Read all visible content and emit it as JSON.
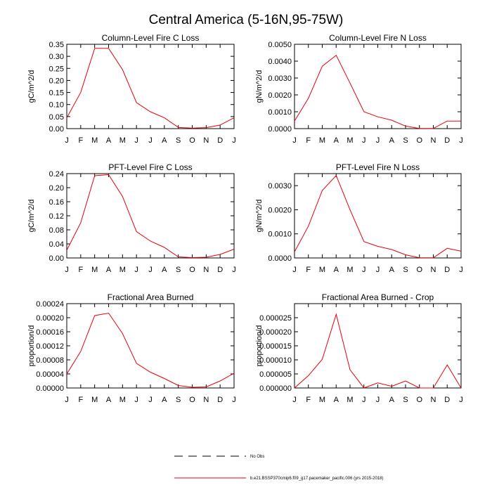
{
  "main_title": "Central America (5-16N,95-75W)",
  "legend": {
    "obs_label": "No Obs",
    "model_label": "b.e21.BSSP370cmip6.f09_g17.pacemaker_pacific.006 (yrs 2015-2018)",
    "model_color": "#e8000b",
    "obs_color": "#000000"
  },
  "chart_data": [
    {
      "type": "line",
      "title": "Column-Level Fire C Loss",
      "ylabel": "gC/m^2/d",
      "x": [
        "J",
        "F",
        "M",
        "A",
        "M",
        "J",
        "J",
        "A",
        "S",
        "O",
        "N",
        "D",
        "J"
      ],
      "ylim": [
        0,
        0.35
      ],
      "yticks": [
        "0.00",
        "0.05",
        "0.10",
        "0.15",
        "0.20",
        "0.25",
        "0.30",
        "0.35"
      ],
      "series": [
        {
          "values": [
            0.045,
            0.15,
            0.333,
            0.333,
            0.245,
            0.108,
            0.07,
            0.045,
            0.005,
            0.002,
            0.004,
            0.015,
            0.045
          ]
        }
      ]
    },
    {
      "type": "line",
      "title": "Column-Level Fire N Loss",
      "ylabel": "gN/m^2/d",
      "x": [
        "J",
        "F",
        "M",
        "A",
        "M",
        "J",
        "J",
        "A",
        "S",
        "O",
        "N",
        "D",
        "J"
      ],
      "ylim": [
        0,
        0.005
      ],
      "yticks": [
        "0.0000",
        "0.0010",
        "0.0020",
        "0.0030",
        "0.0040",
        "0.0050"
      ],
      "series": [
        {
          "values": [
            0.00045,
            0.0018,
            0.0037,
            0.00435,
            0.0027,
            0.001,
            0.0007,
            0.0005,
            0.00015,
            1e-05,
            1e-05,
            0.00045,
            0.00045
          ]
        }
      ]
    },
    {
      "type": "line",
      "title": "PFT-Level Fire C Loss",
      "ylabel": "gC/m^2/d",
      "x": [
        "J",
        "F",
        "M",
        "A",
        "M",
        "J",
        "J",
        "A",
        "S",
        "O",
        "N",
        "D",
        "J"
      ],
      "ylim": [
        0,
        0.24
      ],
      "yticks": [
        "0.00",
        "0.04",
        "0.08",
        "0.12",
        "0.16",
        "0.20",
        "0.24"
      ],
      "series": [
        {
          "values": [
            0.022,
            0.1,
            0.234,
            0.237,
            0.175,
            0.075,
            0.048,
            0.03,
            0.003,
            0.001,
            0.002,
            0.01,
            0.025
          ]
        }
      ]
    },
    {
      "type": "line",
      "title": "PFT-Level Fire N Loss",
      "ylabel": "gN/m^2/d",
      "x": [
        "J",
        "F",
        "M",
        "A",
        "M",
        "J",
        "J",
        "A",
        "S",
        "O",
        "N",
        "D",
        "J"
      ],
      "ylim": [
        0,
        0.0035
      ],
      "yticks": [
        "0.0000",
        "0.0010",
        "0.0020",
        "0.0030"
      ],
      "series": [
        {
          "values": [
            0.00025,
            0.00132,
            0.0028,
            0.00342,
            0.002,
            0.00068,
            0.00048,
            0.00035,
            0.00013,
            1e-05,
            1e-05,
            0.0004,
            0.00028
          ]
        }
      ]
    },
    {
      "type": "line",
      "title": "Fractional Area Burned",
      "ylabel": "proportion/d",
      "x": [
        "J",
        "F",
        "M",
        "A",
        "M",
        "J",
        "J",
        "A",
        "S",
        "O",
        "N",
        "D",
        "J"
      ],
      "ylim": [
        0,
        0.00024
      ],
      "yticks": [
        "0.00000",
        "0.00004",
        "0.00008",
        "0.00012",
        "0.00016",
        "0.00020",
        "0.00024"
      ],
      "series": [
        {
          "values": [
            4e-05,
            0.000104,
            0.000206,
            0.000213,
            0.000155,
            7e-05,
            4.5e-05,
            2.7e-05,
            7e-06,
            2e-06,
            3e-06,
            2e-05,
            4.2e-05
          ]
        }
      ]
    },
    {
      "type": "line",
      "title": "Fractional Area Burned - Crop",
      "ylabel": "proportion/d",
      "x": [
        "J",
        "F",
        "M",
        "A",
        "M",
        "J",
        "J",
        "A",
        "S",
        "O",
        "N",
        "D",
        "J"
      ],
      "ylim": [
        0,
        3e-05
      ],
      "yticks": [
        "0.000000",
        "0.000005",
        "0.000010",
        "0.000015",
        "0.000020",
        "0.000025"
      ],
      "series": [
        {
          "values": [
            0.0,
            4.4e-06,
            1.02e-05,
            2.62e-05,
            6.5e-06,
            0.0,
            1.8e-06,
            6e-07,
            2.5e-06,
            0.0,
            0.0,
            8.2e-06,
            0.0
          ]
        }
      ]
    }
  ]
}
